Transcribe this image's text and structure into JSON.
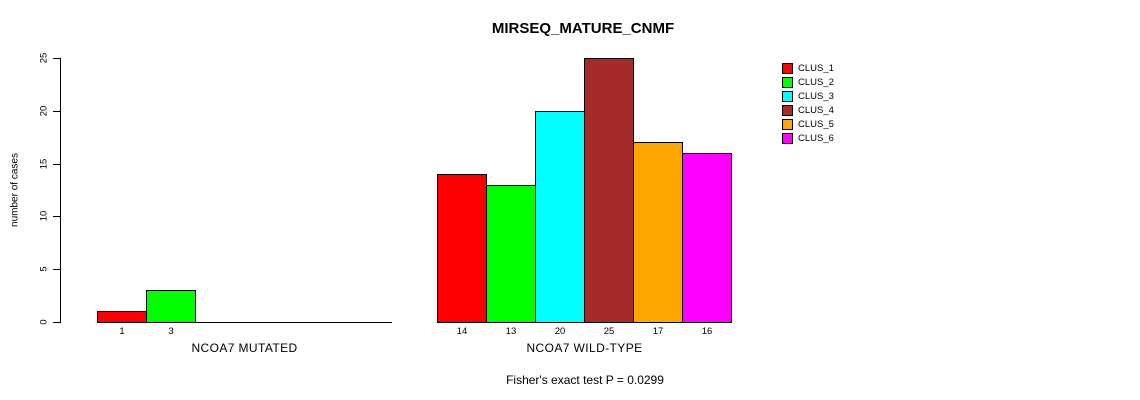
{
  "title": "MIRSEQ_MATURE_CNMF",
  "footer": "Fisher's exact test P = 0.0299",
  "y_axis": {
    "label": "number of cases"
  },
  "legend": {
    "items": [
      {
        "label": "CLUS_1",
        "color": "#ff0000"
      },
      {
        "label": "CLUS_2",
        "color": "#00ff00"
      },
      {
        "label": "CLUS_3",
        "color": "#00ffff"
      },
      {
        "label": "CLUS_4",
        "color": "#a52a2a"
      },
      {
        "label": "CLUS_5",
        "color": "#ffa500"
      },
      {
        "label": "CLUS_6",
        "color": "#ff00ff"
      }
    ]
  },
  "chart_data": {
    "type": "bar",
    "title": "MIRSEQ_MATURE_CNMF",
    "xlabel": "",
    "ylabel": "number of cases",
    "ylim": [
      0,
      25
    ],
    "yticks": [
      0,
      5,
      10,
      15,
      20,
      25
    ],
    "grid": false,
    "legend_position": "top-right",
    "bar_value_labels_shown": true,
    "categories": [
      "NCOA7 MUTATED",
      "NCOA7 WILD-TYPE"
    ],
    "series": [
      {
        "name": "CLUS_1",
        "color": "#ff0000",
        "values": [
          1,
          14
        ]
      },
      {
        "name": "CLUS_2",
        "color": "#00ff00",
        "values": [
          3,
          13
        ]
      },
      {
        "name": "CLUS_3",
        "color": "#00ffff",
        "values": [
          0,
          20
        ]
      },
      {
        "name": "CLUS_4",
        "color": "#a52a2a",
        "values": [
          0,
          25
        ]
      },
      {
        "name": "CLUS_5",
        "color": "#ffa500",
        "values": [
          0,
          17
        ]
      },
      {
        "name": "CLUS_6",
        "color": "#ff00ff",
        "values": [
          0,
          16
        ]
      }
    ],
    "annotation": "Fisher's exact test P = 0.0299"
  }
}
